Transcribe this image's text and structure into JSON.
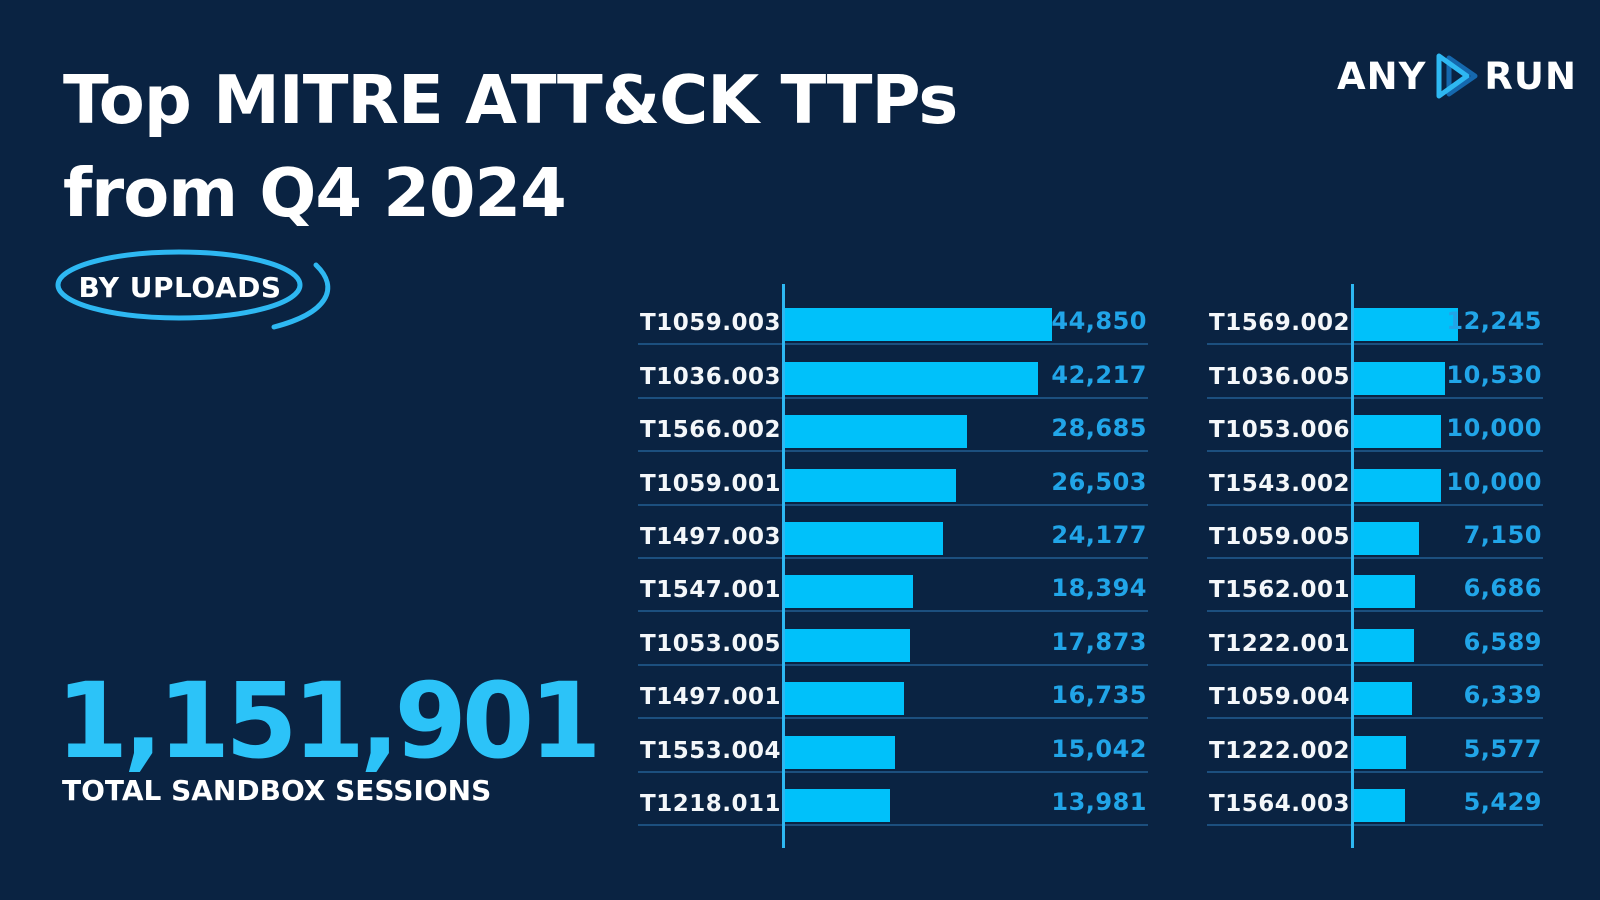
{
  "header": {
    "title_line1": "Top MITRE ATT&CK TTPs",
    "title_line2": "from Q4 2024",
    "badge_label": "BY UPLOADS",
    "logo": {
      "any": "ANY",
      "run": "RUN",
      "icon": "play-triangles-icon"
    }
  },
  "colors": {
    "background": "#0a2342",
    "bar": "#00c1fa",
    "accent": "#2eb8f2",
    "value_text": "#21a5e8",
    "separator": "#1c4f7e",
    "big_number": "#2cc3f8"
  },
  "chart_data": {
    "type": "bar",
    "orientation": "horizontal",
    "title": "Top MITRE ATT&CK TTPs from Q4 2024",
    "subtitle": "BY UPLOADS",
    "unit": "uploads",
    "grid": "row-separators",
    "columns": [
      {
        "name": "left",
        "max": 44850,
        "items": [
          {
            "label": "T1059.003",
            "value": 44850,
            "display": "44,850"
          },
          {
            "label": "T1036.003",
            "value": 42217,
            "display": "42,217"
          },
          {
            "label": "T1566.002",
            "value": 28685,
            "display": "28,685"
          },
          {
            "label": "T1059.001",
            "value": 26503,
            "display": "26,503"
          },
          {
            "label": "T1497.003",
            "value": 24177,
            "display": "24,177"
          },
          {
            "label": "T1547.001",
            "value": 18394,
            "display": "18,394"
          },
          {
            "label": "T1053.005",
            "value": 17873,
            "display": "17,873"
          },
          {
            "label": "T1497.001",
            "value": 16735,
            "display": "16,735"
          },
          {
            "label": "T1553.004",
            "value": 15042,
            "display": "15,042"
          },
          {
            "label": "T1218.011",
            "value": 13981,
            "display": "13,981"
          }
        ]
      },
      {
        "name": "right",
        "max": 12245,
        "items": [
          {
            "label": "T1569.002",
            "value": 12245,
            "display": "12,245"
          },
          {
            "label": "T1036.005",
            "value": 10530,
            "display": "10,530"
          },
          {
            "label": "T1053.006",
            "value": 10000,
            "display": "10,000"
          },
          {
            "label": "T1543.002",
            "value": 10000,
            "display": "10,000"
          },
          {
            "label": "T1059.005",
            "value": 7150,
            "display": "7,150"
          },
          {
            "label": "T1562.001",
            "value": 6686,
            "display": "6,686"
          },
          {
            "label": "T1222.001",
            "value": 6589,
            "display": "6,589"
          },
          {
            "label": "T1059.004",
            "value": 6339,
            "display": "6,339"
          },
          {
            "label": "T1222.002",
            "value": 5577,
            "display": "5,577"
          },
          {
            "label": "T1564.003",
            "value": 5429,
            "display": "5,429"
          }
        ]
      }
    ],
    "total": {
      "value": 1151901,
      "display": "1,151,901",
      "label": "TOTAL SANDBOX SESSIONS"
    }
  }
}
